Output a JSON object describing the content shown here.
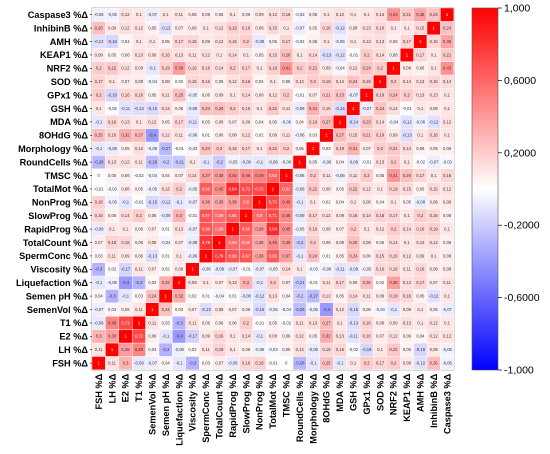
{
  "chart_data": {
    "type": "heatmap",
    "variables": [
      "FSH %Δ",
      "LH %Δ",
      "E2 %Δ",
      "T1 %Δ",
      "SemenVol %Δ",
      "Semen pH %Δ",
      "Liquefaction %Δ",
      "Viscosity %Δ",
      "SpermConc %Δ",
      "TotalCount %Δ",
      "RapidProg %Δ",
      "SlowProg %Δ",
      "NonProg %Δ",
      "TotalMot %Δ",
      "TMSC %Δ",
      "RoundCells %Δ",
      "Morphology %Δ",
      "8OHdG %Δ",
      "MDA %Δ",
      "GSH %Δ",
      "GPx1 %Δ",
      "SOD %Δ",
      "NRF2 %Δ",
      "KEAP1 %Δ",
      "AMH %Δ",
      "InhibinB %Δ",
      "Caspase3 %Δ"
    ],
    "colorbar": {
      "ticks": [
        "1,000",
        "0,6000",
        "0,2000",
        "-0,2000",
        "-0,6000",
        "-1,000"
      ],
      "max_color": "#ff0000",
      "min_color": "#0000ff",
      "mid_color": "#ffffff"
    },
    "values": [
      [
        1,
        0.11,
        0.3,
        -0.09,
        -0.07,
        0.04,
        -0.1,
        -0.3,
        0.03,
        0.07,
        -0.08,
        0.16,
        0.18,
        -0.01,
        0,
        -0.28,
        -0.1,
        0.25,
        -0.1,
        0.1,
        0.2,
        0.17,
        0.2,
        0.09,
        -0.12,
        0.26,
        -0.06
      ],
      [
        0.11,
        1,
        0.38,
        0.48,
        0.04,
        -0.3,
        -0.06,
        0.02,
        0.11,
        0.18,
        0.1,
        0.06,
        -0.05,
        -0.03,
        0.05,
        0.13,
        -0.08,
        0.16,
        0.16,
        -0.02,
        -0.16,
        0.1,
        0.22,
        0.05,
        -0.16,
        0.09,
        -0.05
      ],
      [
        0.3,
        0.38,
        1,
        0.72,
        0.06,
        -0.1,
        -0.4,
        -0.17,
        0.09,
        0.16,
        0.1,
        0.14,
        -0.1,
        0.08,
        0.06,
        0.12,
        0.05,
        0.32,
        0.13,
        -0.11,
        0.16,
        0.07,
        0.12,
        0.06,
        0.04,
        0.12,
        0.12
      ],
      [
        -0.09,
        0.48,
        0.72,
        1,
        0.11,
        0.03,
        -0.3,
        0.11,
        0.06,
        0.06,
        0.06,
        0.2,
        -0.01,
        0.05,
        -0.02,
        0.11,
        0.13,
        0.27,
        0.1,
        -0.13,
        0.16,
        0.08,
        0.09,
        0.13,
        0.1,
        0.12,
        0.1
      ],
      [
        -0.07,
        0.04,
        0.06,
        0.11,
        1,
        0.24,
        0.03,
        0.07,
        -0.13,
        0.09,
        0.07,
        0.06,
        -0.15,
        -0.05,
        -0.04,
        -0.26,
        -0.06,
        -0.4,
        0.12,
        -0.15,
        0.05,
        -0.04,
        -0.1,
        0.09,
        0.1,
        0.05,
        -0.07
      ],
      [
        0.04,
        -0.3,
        -0.1,
        0.03,
        0.24,
        1,
        0.32,
        0.02,
        0.01,
        -0.04,
        0.01,
        -0.08,
        -0.12,
        0.13,
        0.04,
        -0.2,
        -0.27,
        0.12,
        0.05,
        0.14,
        0.11,
        0.08,
        0.19,
        0.16,
        0.05,
        -0.12,
        0.1
      ],
      [
        -0.1,
        -0.06,
        -0.4,
        -0.3,
        0.03,
        0.32,
        1,
        0.09,
        0.1,
        0.07,
        0.13,
        0.3,
        -0.1,
        0.2,
        0.07,
        -0.21,
        -0.01,
        0.11,
        0.17,
        0.06,
        0.25,
        0.02,
        0.38,
        0.13,
        0.17,
        0.07,
        0.11
      ],
      [
        -0.3,
        0.02,
        -0.17,
        0.11,
        0.07,
        0.02,
        0.09,
        1,
        -0.06,
        -0.08,
        -0.07,
        -0.01,
        -0.07,
        -0.05,
        0.14,
        0.1,
        -0.03,
        -0.06,
        -0.11,
        -0.09,
        -0.05,
        0.16,
        0.16,
        0.11,
        0.16,
        0.08,
        0.08
      ],
      [
        0.03,
        0.11,
        0.09,
        0.06,
        -0.13,
        0.01,
        0.1,
        -0.06,
        1,
        0.79,
        0.68,
        0.67,
        0.36,
        0.65,
        0.37,
        -0.1,
        0.24,
        0.01,
        0.05,
        0.24,
        0.06,
        0.15,
        0.16,
        0.12,
        0.09,
        0.1,
        0.08
      ],
      [
        0.07,
        0.18,
        0.16,
        0.06,
        0.09,
        -0.04,
        0.07,
        -0.08,
        0.79,
        1,
        0.59,
        0.59,
        0.35,
        0.45,
        0.39,
        -0.2,
        0.2,
        0.06,
        0.08,
        0.26,
        0.09,
        0.05,
        0.14,
        0.1,
        0.12,
        0.12,
        0.06
      ],
      [
        -0.08,
        0.1,
        0.1,
        0.06,
        0.07,
        0.01,
        0.13,
        -0.07,
        0.68,
        0.59,
        1,
        0.66,
        0.38,
        0.84,
        0.45,
        -0.05,
        0.16,
        0.08,
        0.07,
        0.2,
        0.1,
        0.12,
        0.2,
        0.14,
        0.16,
        0.19,
        0.1
      ],
      [
        0.16,
        0.06,
        0.14,
        0.2,
        0.06,
        -0.08,
        0.3,
        -0.01,
        0.67,
        0.59,
        0.66,
        1,
        0.6,
        0.71,
        0.46,
        -0.09,
        0.17,
        0.12,
        0.09,
        0.16,
        0.14,
        0.18,
        0.17,
        0.1,
        0.2,
        0.16,
        0.06
      ],
      [
        0.18,
        -0.05,
        -0.1,
        -0.01,
        -0.15,
        -0.12,
        -0.1,
        -0.07,
        0.36,
        0.35,
        0.38,
        0.6,
        1,
        0.72,
        0.49,
        -0.1,
        0.1,
        0.02,
        0.04,
        0.1,
        0.08,
        0.04,
        0.1,
        0.05,
        -0.08,
        0.08,
        0.09
      ],
      [
        -0.01,
        -0.03,
        0.08,
        0.05,
        -0.05,
        0.13,
        0.2,
        -0.05,
        0.65,
        0.45,
        0.84,
        0.71,
        0.72,
        1,
        0.62,
        -0.08,
        0.22,
        0.08,
        0.05,
        0.22,
        0.12,
        0.1,
        0.19,
        0.15,
        0.05,
        0.15,
        0.12
      ],
      [
        0,
        0.05,
        0.06,
        -0.02,
        -0.04,
        0.04,
        0.07,
        0.14,
        0.37,
        0.39,
        0.45,
        0.46,
        0.49,
        0.62,
        1,
        -0.06,
        0.2,
        0.11,
        -0.06,
        0.11,
        0.2,
        0.05,
        0.41,
        0.26,
        0.17,
        0.1,
        0.16
      ],
      [
        -0.28,
        0.13,
        0.12,
        0.11,
        -0.26,
        -0.2,
        -0.21,
        0.1,
        -0.1,
        -0.2,
        -0.05,
        -0.09,
        -0.1,
        -0.08,
        -0.06,
        1,
        0.05,
        -0.06,
        0.04,
        -0.08,
        -0.01,
        0.13,
        0.2,
        0.1,
        -0.02,
        -0.07,
        -0.03
      ],
      [
        -0.1,
        -0.08,
        0.05,
        0.13,
        -0.06,
        -0.27,
        -0.01,
        -0.03,
        0.24,
        0.2,
        0.16,
        0.17,
        0.1,
        0.22,
        0.2,
        0.05,
        1,
        0.03,
        0.19,
        0.31,
        0.07,
        0.2,
        0.21,
        0.14,
        0.06,
        0.05,
        0.06
      ],
      [
        0.25,
        0.16,
        0.32,
        0.27,
        -0.4,
        0.12,
        0.11,
        -0.06,
        0.01,
        0.06,
        0.08,
        0.12,
        0.02,
        0.08,
        0.11,
        -0.06,
        0.03,
        1,
        0.27,
        0.15,
        0.21,
        0.19,
        0.09,
        -0.13,
        0.1,
        0.16,
        0.1
      ],
      [
        -0.1,
        0.16,
        0.13,
        0.1,
        0.12,
        0.05,
        0.17,
        -0.11,
        0.05,
        0.08,
        0.07,
        0.09,
        0.04,
        0.05,
        -0.06,
        0.04,
        0.19,
        0.27,
        1,
        -0.14,
        0.23,
        0.14,
        -0.04,
        -0.12,
        -0.06,
        -0.12,
        0.12
      ],
      [
        0.1,
        -0.02,
        -0.11,
        -0.13,
        -0.15,
        0.14,
        0.06,
        -0.09,
        0.24,
        0.26,
        0.2,
        0.16,
        0.1,
        0.22,
        0.11,
        -0.08,
        0.31,
        0.15,
        -0.14,
        1,
        -0.07,
        0.24,
        0.12,
        -0.01,
        0.1,
        0.08,
        0.1
      ],
      [
        0.2,
        -0.16,
        0.16,
        0.16,
        0.05,
        0.11,
        0.25,
        -0.05,
        0.06,
        0.09,
        0.1,
        0.14,
        0.08,
        0.12,
        0.2,
        -0.01,
        0.07,
        0.21,
        0.23,
        -0.07,
        1,
        0.19,
        0.24,
        0.2,
        0.13,
        0.13,
        0.1
      ],
      [
        0.17,
        0.1,
        0.07,
        0.08,
        -0.04,
        0.08,
        0.02,
        0.16,
        0.15,
        0.05,
        0.12,
        0.18,
        0.04,
        0.1,
        0.05,
        0.13,
        0.2,
        0.19,
        0.14,
        0.24,
        0.19,
        1,
        0.2,
        0.14,
        0.13,
        0.16,
        0.14
      ],
      [
        0.2,
        0.22,
        0.12,
        0.09,
        -0.1,
        0.19,
        0.38,
        0.16,
        0.16,
        0.14,
        0.2,
        0.17,
        0.1,
        0.19,
        0.41,
        0.2,
        0.21,
        0.09,
        -0.04,
        0.12,
        0.24,
        0.2,
        1,
        0.08,
        0.06,
        0.1,
        0.43
      ],
      [
        0.09,
        0.05,
        0.06,
        0.13,
        0.09,
        0.16,
        0.13,
        0.11,
        0.12,
        0.1,
        0.14,
        0.1,
        0.05,
        0.15,
        0.26,
        0.1,
        0.14,
        -0.13,
        -0.12,
        -0.01,
        0.2,
        0.14,
        0.08,
        1,
        0.17,
        0.1,
        0.21
      ],
      [
        -0.12,
        -0.16,
        0.04,
        0.1,
        0.1,
        0.05,
        0.17,
        0.16,
        0.09,
        0.12,
        0.16,
        0.2,
        -0.08,
        0.05,
        0.17,
        -0.02,
        0.06,
        0.1,
        -0.06,
        0.1,
        0.13,
        0.13,
        0.06,
        0.17,
        1,
        0.15,
        0.36
      ],
      [
        0.26,
        0.09,
        0.12,
        0.12,
        0.05,
        -0.12,
        0.07,
        0.08,
        0.1,
        0.12,
        0.19,
        0.16,
        0.08,
        0.15,
        0.1,
        -0.07,
        0.05,
        0.16,
        -0.12,
        0.08,
        0.13,
        0.16,
        0.1,
        0.1,
        0.15,
        1,
        0.24
      ],
      [
        -0.06,
        -0.05,
        0.12,
        0.1,
        -0.07,
        0.1,
        0.11,
        0.08,
        0.08,
        0.06,
        0.1,
        0.06,
        0.09,
        0.12,
        0.16,
        -0.03,
        0.06,
        0.1,
        0.12,
        0.1,
        0.1,
        0.14,
        0.43,
        0.21,
        0.36,
        0.24,
        1
      ]
    ]
  }
}
